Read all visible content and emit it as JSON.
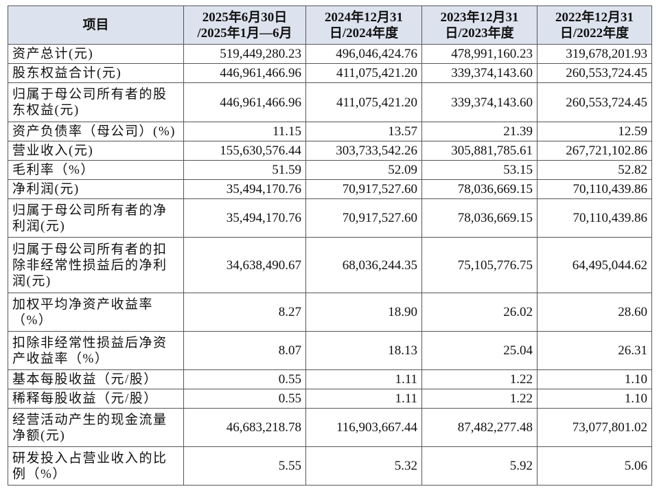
{
  "table": {
    "header": [
      [
        "项目"
      ],
      [
        "2025年6月30日",
        "/2025年1月—6月"
      ],
      [
        "2024年12月31",
        "日/2024年度"
      ],
      [
        "2023年12月31",
        "日/2023年度"
      ],
      [
        "2022年12月31",
        "日/2022年度"
      ]
    ],
    "rows": [
      [
        "资产总计(元)",
        "519,449,280.23",
        "496,046,424.76",
        "478,991,160.23",
        "319,678,201.93"
      ],
      [
        "股东权益合计(元)",
        "446,961,466.96",
        "411,075,421.20",
        "339,374,143.60",
        "260,553,724.45"
      ],
      [
        "归属于母公司所有者的股东权益(元)",
        "446,961,466.96",
        "411,075,421.20",
        "339,374,143.60",
        "260,553,724.45"
      ],
      [
        "资产负债率（母公司）(%)",
        "11.15",
        "13.57",
        "21.39",
        "12.59"
      ],
      [
        "营业收入(元)",
        "155,630,576.44",
        "303,733,542.26",
        "305,881,785.61",
        "267,721,102.86"
      ],
      [
        "毛利率（%）",
        "51.59",
        "52.09",
        "53.15",
        "52.82"
      ],
      [
        "净利润(元)",
        "35,494,170.76",
        "70,917,527.60",
        "78,036,669.15",
        "70,110,439.86"
      ],
      [
        "归属于母公司所有者的净利润(元)",
        "35,494,170.76",
        "70,917,527.60",
        "78,036,669.15",
        "70,110,439.86"
      ],
      [
        "归属于母公司所有者的扣除非经常性损益后的净利润(元)",
        "34,638,490.67",
        "68,036,244.35",
        "75,105,776.75",
        "64,495,044.62"
      ],
      [
        "加权平均净资产收益率（%）",
        "8.27",
        "18.90",
        "26.02",
        "28.60"
      ],
      [
        "扣除非经常性损益后净资产收益率（%）",
        "8.07",
        "18.13",
        "25.04",
        "26.31"
      ],
      [
        "基本每股收益（元/股）",
        "0.55",
        "1.11",
        "1.22",
        "1.10"
      ],
      [
        "稀释每股收益（元/股）",
        "0.55",
        "1.11",
        "1.22",
        "1.10"
      ],
      [
        "经营活动产生的现金流量净额(元)",
        "46,683,218.78",
        "116,903,667.44",
        "87,482,277.48",
        "73,077,801.02"
      ],
      [
        "研发投入占营业收入的比例（%）",
        "5.55",
        "5.32",
        "5.92",
        "5.06"
      ]
    ]
  }
}
